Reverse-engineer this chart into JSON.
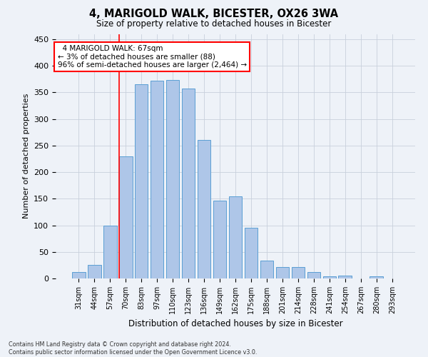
{
  "title1": "4, MARIGOLD WALK, BICESTER, OX26 3WA",
  "title2": "Size of property relative to detached houses in Bicester",
  "xlabel": "Distribution of detached houses by size in Bicester",
  "ylabel": "Number of detached properties",
  "footnote1": "Contains HM Land Registry data © Crown copyright and database right 2024.",
  "footnote2": "Contains public sector information licensed under the Open Government Licence v3.0.",
  "bar_labels": [
    "31sqm",
    "44sqm",
    "57sqm",
    "70sqm",
    "83sqm",
    "97sqm",
    "110sqm",
    "123sqm",
    "136sqm",
    "149sqm",
    "162sqm",
    "175sqm",
    "188sqm",
    "201sqm",
    "214sqm",
    "228sqm",
    "241sqm",
    "254sqm",
    "267sqm",
    "280sqm",
    "293sqm"
  ],
  "bar_values": [
    12,
    26,
    100,
    230,
    365,
    372,
    373,
    357,
    260,
    147,
    154,
    95,
    33,
    21,
    21,
    12,
    4,
    6,
    0,
    4,
    0
  ],
  "bar_color": "#aec6e8",
  "bar_edge_color": "#5a9fd4",
  "vline_color": "red",
  "vline_x_data": 2.57,
  "annotation_text": "  4 MARIGOLD WALK: 67sqm\n← 3% of detached houses are smaller (88)\n96% of semi-detached houses are larger (2,464) →",
  "annotation_box_color": "white",
  "annotation_box_edge_color": "red",
  "ylim": [
    0,
    460
  ],
  "yticks": [
    0,
    50,
    100,
    150,
    200,
    250,
    300,
    350,
    400,
    450
  ],
  "grid_color": "#c8d0dc",
  "bg_color": "#eef2f8"
}
